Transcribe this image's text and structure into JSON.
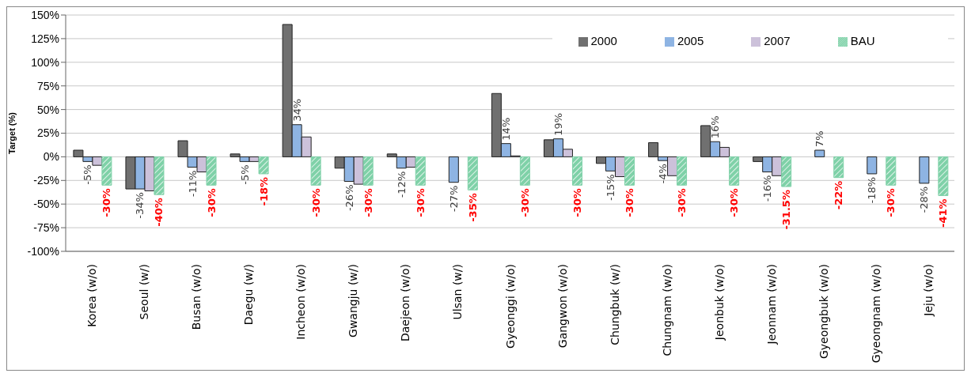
{
  "chart_data": {
    "type": "bar",
    "ylabel": "Target (%)",
    "categories": [
      "Korea (w/o)",
      "Seoul (w/)",
      "Busan (w/o)",
      "Daegu (w/)",
      "Incheon (w/o)",
      "Gwangju (w/)",
      "Daejeon (w/o)",
      "Ulsan (w/)",
      "Gyeonggi (w/o)",
      "Gangwon (w/o)",
      "Chungbuk (w/)",
      "Chungnam (w/o)",
      "Jeonbuk (w/o)",
      "Jeonnam (w/o)",
      "Gyeongbuk (w/o)",
      "Gyeongnam (w/o)",
      "Jeju (w/o)"
    ],
    "series": [
      {
        "name": "2000",
        "color": "#707070",
        "values": [
          7,
          -34,
          17,
          3,
          140,
          -12,
          3,
          null,
          67,
          18,
          -7,
          15,
          33,
          -5,
          null,
          null,
          null
        ]
      },
      {
        "name": "2005",
        "color": "#8eb4e3",
        "values": [
          -5,
          -34,
          -11,
          -5,
          34,
          -26,
          -12,
          -27,
          14,
          19,
          -15,
          -4,
          16,
          -16,
          7,
          -18,
          -28
        ],
        "value_labels": [
          "-5%",
          "-34%",
          "-11%",
          "-5%",
          "34%",
          "-26%",
          "-12%",
          "-27%",
          "14%",
          "19%",
          "-15%",
          "-4%",
          "16%",
          "-16%",
          "7%",
          "-18%",
          "-28%"
        ]
      },
      {
        "name": "2007",
        "color": "#ccc1da",
        "values": [
          -9,
          -36,
          -16,
          -5,
          21,
          -29,
          -11,
          null,
          1,
          8,
          -21,
          -20,
          10,
          -20,
          null,
          null,
          null
        ]
      },
      {
        "name": "BAU",
        "color": "#7fd1a8",
        "values": [
          -30,
          -40,
          -30,
          -18,
          -30,
          -30,
          -30,
          -35,
          -30,
          -30,
          -30,
          -30,
          -30,
          -31.5,
          -22,
          -30,
          -41
        ],
        "value_labels": [
          "-30%",
          "-40%",
          "-30%",
          "-18%",
          "-30%",
          "-30%",
          "-30%",
          "-35%",
          "-30%",
          "-30%",
          "-30%",
          "-30%",
          "-30%",
          "-31.5%",
          "-22%",
          "-30%",
          "-41%"
        ]
      }
    ],
    "ylim": [
      -100,
      150
    ],
    "yticks": [
      {
        "value": -100,
        "label": "-100%"
      },
      {
        "value": -75,
        "label": "-75%"
      },
      {
        "value": -50,
        "label": "-50%"
      },
      {
        "value": -25,
        "label": "-25%"
      },
      {
        "value": 0,
        "label": "0%"
      },
      {
        "value": 25,
        "label": "25%"
      },
      {
        "value": 50,
        "label": "50%"
      },
      {
        "value": 75,
        "label": "75%"
      },
      {
        "value": 100,
        "label": "100%"
      },
      {
        "value": 125,
        "label": "125%"
      },
      {
        "value": 150,
        "label": "150%"
      }
    ],
    "grid": "y",
    "legend": "top right"
  }
}
